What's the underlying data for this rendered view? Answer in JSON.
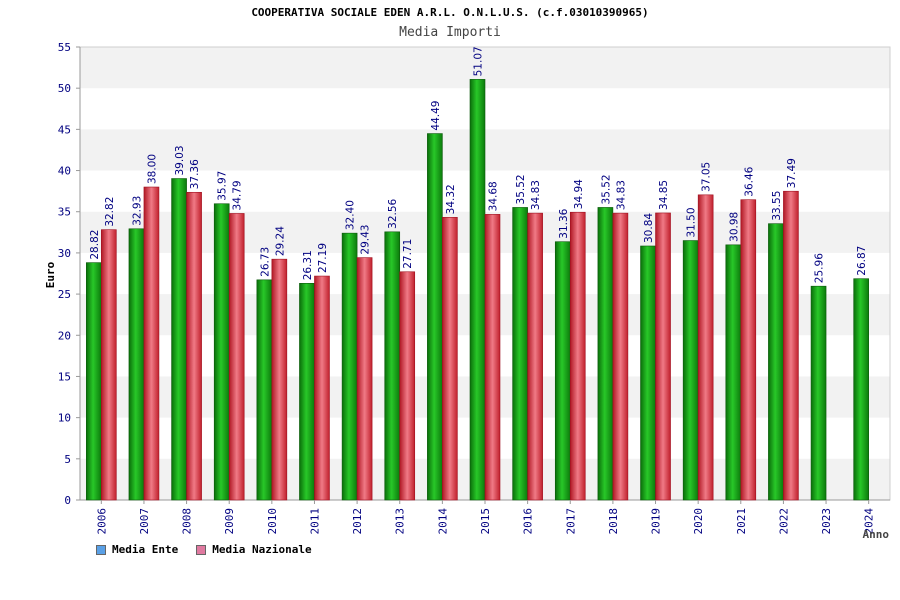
{
  "chart_data": {
    "type": "bar",
    "title": "COOPERATIVA SOCIALE EDEN A.R.L. O.N.L.U.S. (c.f.03010390965)",
    "subtitle": "Media Importi",
    "xlabel": "Anno",
    "ylabel": "Euro",
    "ylim": [
      0,
      55
    ],
    "yticks": [
      0,
      5,
      10,
      15,
      20,
      25,
      30,
      35,
      40,
      45,
      50,
      55
    ],
    "categories": [
      "2006",
      "2007",
      "2008",
      "2009",
      "2010",
      "2011",
      "2012",
      "2013",
      "2014",
      "2015",
      "2016",
      "2017",
      "2018",
      "2019",
      "2020",
      "2021",
      "2022",
      "2023",
      "2024"
    ],
    "series": [
      {
        "name": "Media Ente",
        "color": "#1aa01a",
        "legend_color": "#5aa0e6",
        "values": [
          28.82,
          32.93,
          39.03,
          35.97,
          26.73,
          26.31,
          32.4,
          32.56,
          44.49,
          51.07,
          35.52,
          31.36,
          35.52,
          30.84,
          31.5,
          30.98,
          33.55,
          25.96,
          26.87
        ],
        "labels": [
          "28.82",
          "32.93",
          "39.03",
          "35.97",
          "26.73",
          "26.31",
          "32.40",
          "32.56",
          "44.49",
          "51.07",
          "35.52",
          "31.36",
          "35.52",
          "30.84",
          "31.50",
          "30.98",
          "33.55",
          "25.96",
          "26.87"
        ]
      },
      {
        "name": "Media Nazionale",
        "color": "#e0303c",
        "legend_color": "#e07aa0",
        "values": [
          32.82,
          38.0,
          37.36,
          34.79,
          29.24,
          27.19,
          29.43,
          27.71,
          34.32,
          34.68,
          34.83,
          34.94,
          34.83,
          34.85,
          37.05,
          36.46,
          37.49,
          null,
          null
        ],
        "labels": [
          "32.82",
          "38.00",
          "37.36",
          "34.79",
          "29.24",
          "27.19",
          "29.43",
          "27.71",
          "34.32",
          "34.68",
          "34.83",
          "34.94",
          "34.83",
          "34.85",
          "37.05",
          "36.46",
          "37.49",
          null,
          null
        ]
      }
    ],
    "legend_position": "bottom-left",
    "grid": "horizontal-bands"
  },
  "colors": {
    "band": "#f2f2f2",
    "axis": "#999999",
    "tick_label": "#000080",
    "value_label": "#000080"
  }
}
